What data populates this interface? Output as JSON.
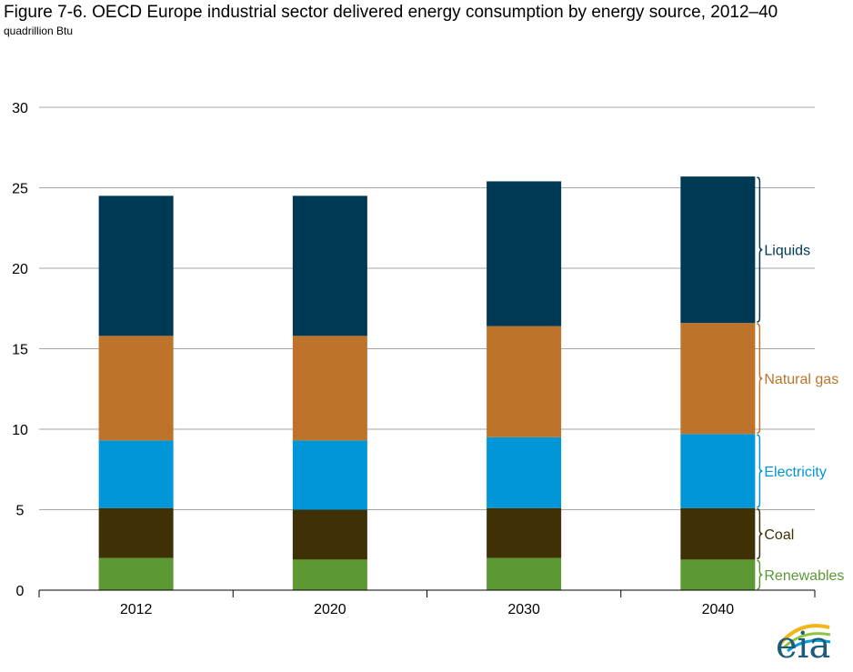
{
  "title": "Figure 7-6. OECD Europe industrial sector delivered energy consumption by energy source, 2012–40",
  "subtitle": "quadrillion Btu",
  "logo_text": "eia",
  "chart_data": {
    "type": "bar",
    "stacked": true,
    "categories": [
      "2012",
      "2020",
      "2030",
      "2040"
    ],
    "ylim": [
      0,
      30
    ],
    "yticks": [
      0,
      5,
      10,
      15,
      20,
      25,
      30
    ],
    "grid": true,
    "series": [
      {
        "name": "Renewables",
        "color": "#5c9834",
        "values": [
          2.0,
          1.9,
          2.0,
          1.9
        ]
      },
      {
        "name": "Coal",
        "color": "#3f3005",
        "values": [
          3.1,
          3.1,
          3.1,
          3.2
        ]
      },
      {
        "name": "Electricity",
        "color": "#0096d7",
        "values": [
          4.2,
          4.3,
          4.4,
          4.6
        ]
      },
      {
        "name": "Natural gas",
        "color": "#bd732a",
        "values": [
          6.5,
          6.5,
          6.9,
          6.9
        ]
      },
      {
        "name": "Liquids",
        "color": "#003953",
        "values": [
          8.7,
          8.7,
          9.0,
          9.1
        ]
      }
    ],
    "label_colors": {
      "Liquids": "#003953",
      "Natural gas": "#bd732a",
      "Electricity": "#0096d7",
      "Coal": "#3f3005",
      "Renewables": "#5c9834"
    }
  }
}
